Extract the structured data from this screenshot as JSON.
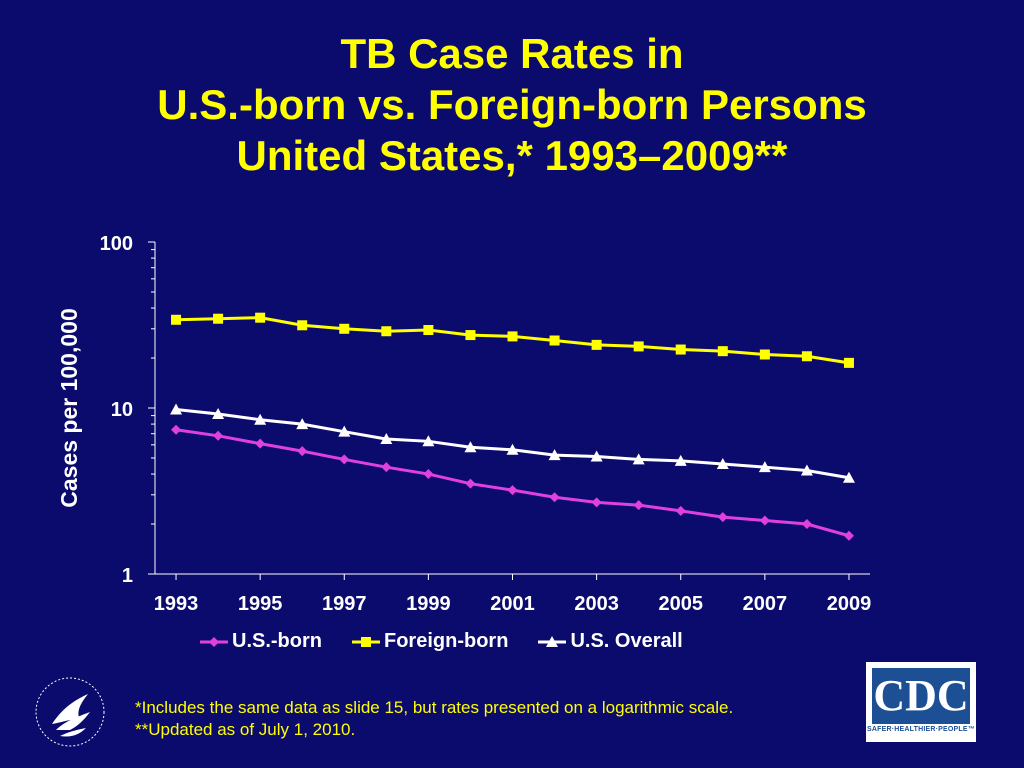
{
  "title_lines": [
    "TB Case Rates in",
    "U.S.-born vs. Foreign-born Persons",
    "United States,* 1993–2009**"
  ],
  "footnotes": [
    "*Includes the same data as slide 15, but rates presented on a logarithmic scale.",
    "**Updated as of July 1, 2010."
  ],
  "logos": {
    "cdc_text": "CDC",
    "cdc_tagline": "SAFER·HEALTHIER·PEOPLE™"
  },
  "colors": {
    "background": "#0b0b6e",
    "title": "#ffff00",
    "us_born": "#e040e0",
    "foreign_born": "#ffff00",
    "overall": "#ffffff"
  },
  "chart_data": {
    "type": "line",
    "title": "",
    "xlabel": "",
    "ylabel": "Cases per 100,000",
    "y_scale": "log",
    "ylim": [
      1,
      100
    ],
    "y_ticks": [
      "1",
      "10",
      "100"
    ],
    "x_tick_labels": [
      "1993",
      "1995",
      "1997",
      "1999",
      "2001",
      "2003",
      "2005",
      "2007",
      "2009"
    ],
    "x": [
      1993,
      1994,
      1995,
      1996,
      1997,
      1998,
      1999,
      2000,
      2001,
      2002,
      2003,
      2004,
      2005,
      2006,
      2007,
      2008,
      2009
    ],
    "legend_position": "bottom",
    "series": [
      {
        "name": "U.S.-born",
        "marker": "diamond",
        "color": "#e040e0",
        "values": [
          7.4,
          6.8,
          6.1,
          5.5,
          4.9,
          4.4,
          4.0,
          3.5,
          3.2,
          2.9,
          2.7,
          2.6,
          2.4,
          2.2,
          2.1,
          2.0,
          1.7
        ]
      },
      {
        "name": "Foreign-born",
        "marker": "square",
        "color": "#ffff00",
        "values": [
          34.0,
          34.5,
          35.0,
          31.5,
          30.0,
          29.0,
          29.5,
          27.5,
          27.0,
          25.5,
          24.0,
          23.5,
          22.5,
          22.0,
          21.0,
          20.5,
          18.7
        ]
      },
      {
        "name": "U.S. Overall",
        "marker": "triangle",
        "color": "#ffffff",
        "values": [
          9.8,
          9.2,
          8.5,
          8.0,
          7.2,
          6.5,
          6.3,
          5.8,
          5.6,
          5.2,
          5.1,
          4.9,
          4.8,
          4.6,
          4.4,
          4.2,
          3.8
        ]
      }
    ]
  }
}
